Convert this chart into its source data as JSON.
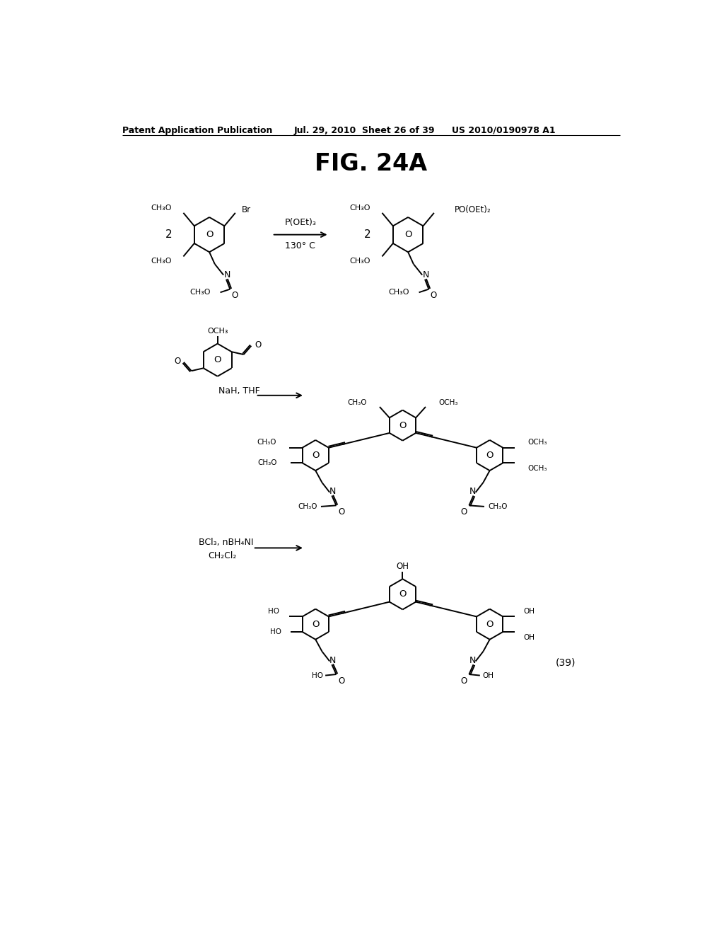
{
  "title": "FIG. 24A",
  "header_left": "Patent Application Publication",
  "header_mid": "Jul. 29, 2010  Sheet 26 of 39",
  "header_right": "US 2010/0190978 A1",
  "bg_color": "#ffffff",
  "text_color": "#000000",
  "font_size_header": 9,
  "font_size_title": 24,
  "font_size_chem": 9
}
